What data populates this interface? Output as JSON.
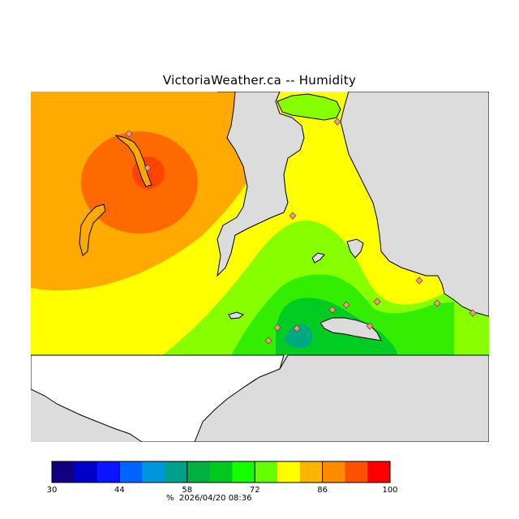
{
  "title": "VictoriaWeather.ca -- Humidity",
  "legend": {
    "unit": "%",
    "timestamp": "2026/04/20 08:36",
    "tick_labels": [
      "30",
      "44",
      "58",
      "72",
      "86",
      "100"
    ],
    "colors": [
      "#10007f",
      "#0000c8",
      "#0a14ff",
      "#0064ff",
      "#0096dc",
      "#00a08c",
      "#00b040",
      "#00c81e",
      "#14ff00",
      "#64ff00",
      "#ffff00",
      "#ffb400",
      "#ff8c00",
      "#ff5000",
      "#ff0000"
    ]
  },
  "map_colors": {
    "background_land": "#dcdcdc",
    "water_outline": "#000000",
    "humidity_orange_dark": "#ff6a00",
    "humidity_orange": "#ffaa00",
    "humidity_yellow": "#ffff00",
    "humidity_lightgreen": "#88ff00",
    "humidity_green": "#33ee00",
    "humidity_darkgreen": "#00cc22",
    "humidity_teal": "#00aa80"
  },
  "stations_marker": "diamond-icon"
}
